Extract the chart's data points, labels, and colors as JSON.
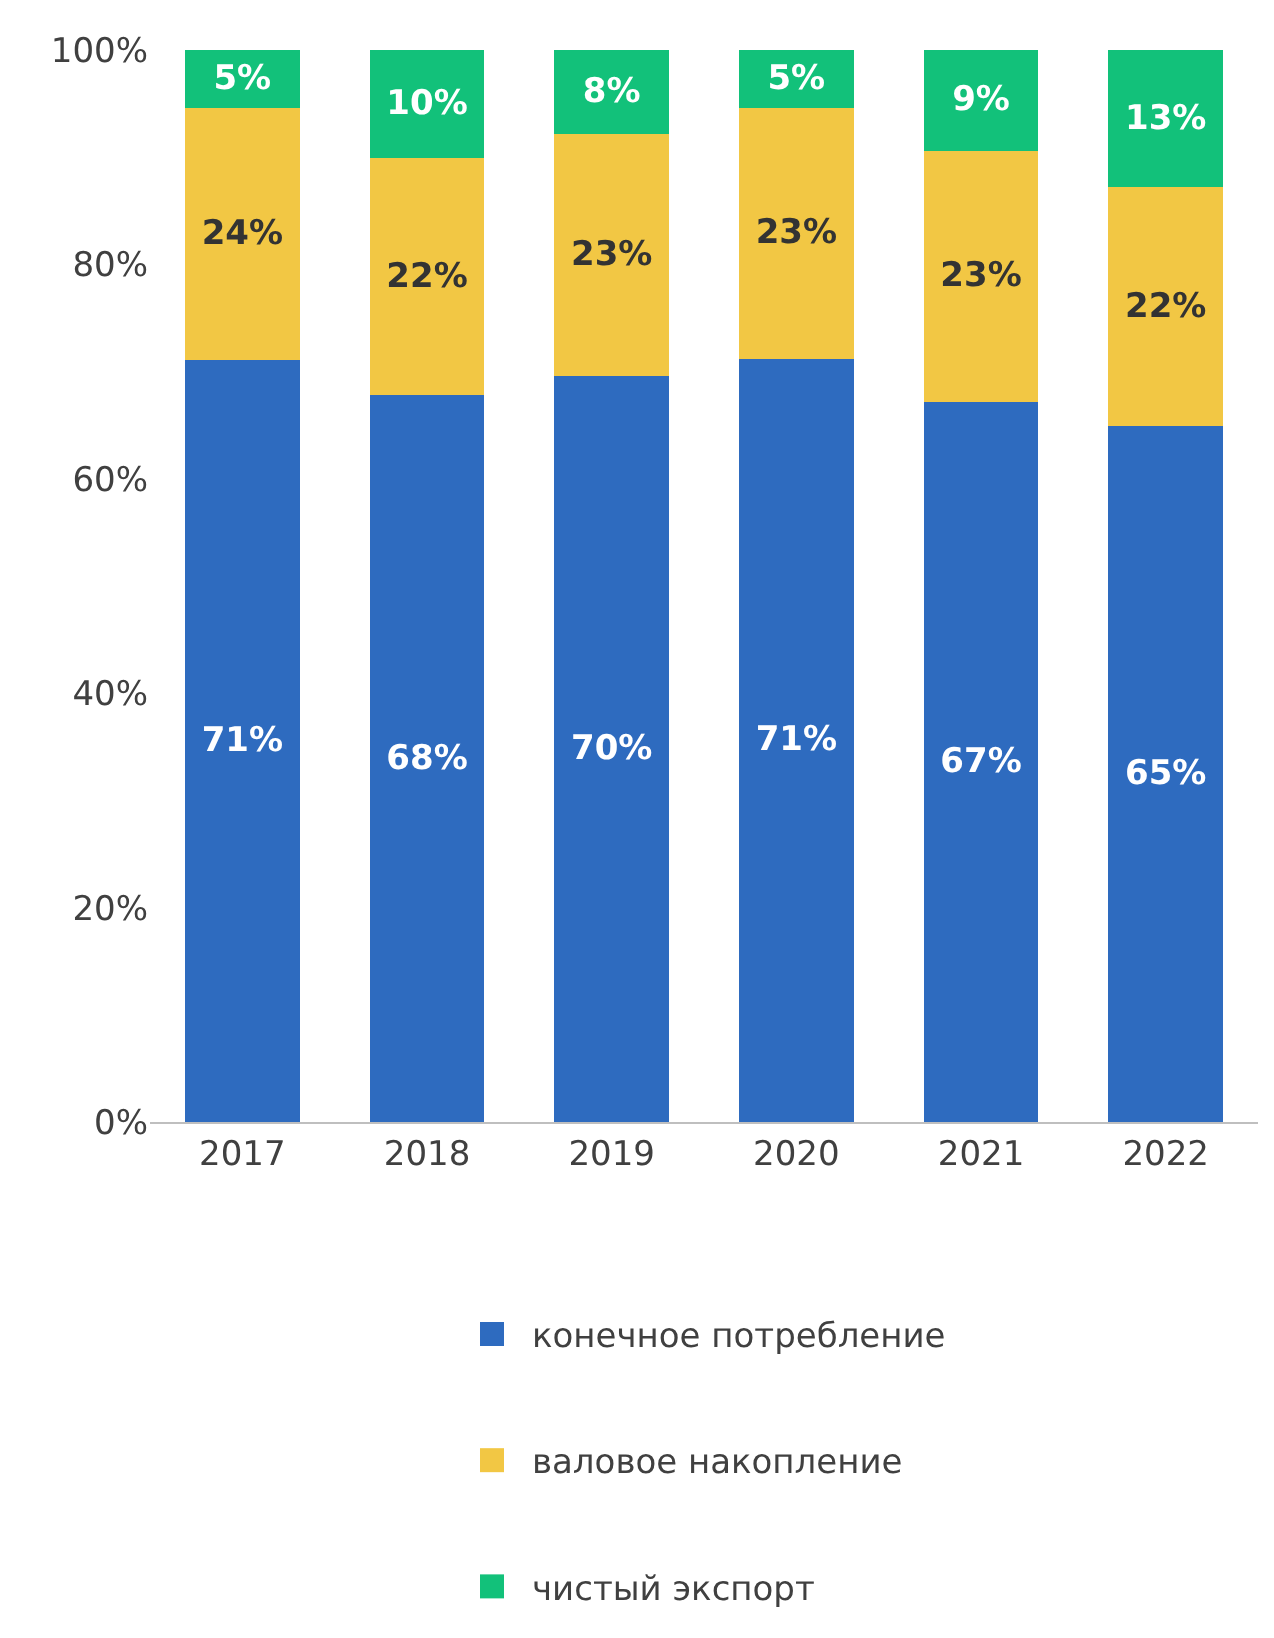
{
  "chart_data": {
    "type": "bar",
    "stacked": true,
    "categories": [
      "2017",
      "2018",
      "2019",
      "2020",
      "2021",
      "2022"
    ],
    "series": [
      {
        "name": "конечное потребление",
        "color": "#2e6bbf",
        "values": [
          71.1,
          67.8,
          69.6,
          71.2,
          67.2,
          64.9
        ],
        "value_labels": [
          "71%",
          "68%",
          "70%",
          "71%",
          "67%",
          "65%"
        ]
      },
      {
        "name": "валовое накопление",
        "color": "#f2c744",
        "values": [
          23.5,
          22.1,
          22.6,
          23.4,
          23.4,
          22.3
        ],
        "value_labels": [
          "24%",
          "22%",
          "23%",
          "23%",
          "23%",
          "22%"
        ]
      },
      {
        "name": "чистый экспорт",
        "color": "#12c17a",
        "values": [
          5.4,
          10.1,
          7.8,
          5.4,
          9.4,
          12.8
        ],
        "value_labels": [
          "5%",
          "10%",
          "8%",
          "5%",
          "9%",
          "13%"
        ]
      }
    ],
    "ylim": [
      0,
      100
    ],
    "yticks": [
      {
        "value": 0,
        "label": "0%"
      },
      {
        "value": 20,
        "label": "20%"
      },
      {
        "value": 40,
        "label": "40%"
      },
      {
        "value": 60,
        "label": "60%"
      },
      {
        "value": 80,
        "label": "80%"
      },
      {
        "value": 100,
        "label": "100%"
      }
    ],
    "legend": "bottom"
  }
}
